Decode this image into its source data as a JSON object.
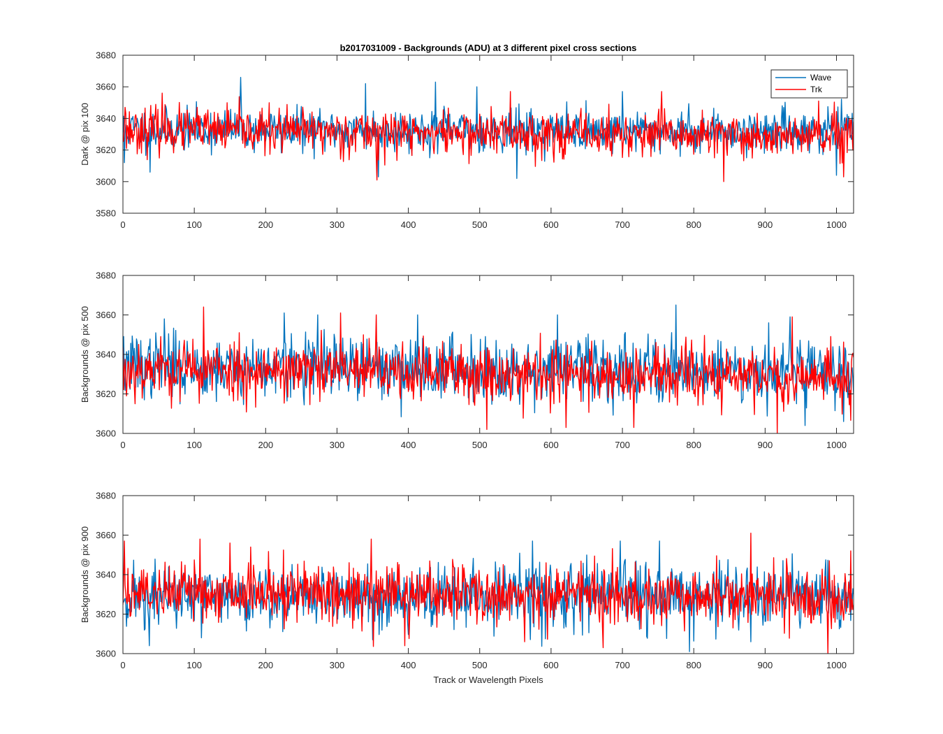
{
  "figure": {
    "title": "b2017031009 - Backgrounds (ADU) at 3 different pixel cross sections",
    "xlabel": "Track or Wavelength Pixels",
    "colors": {
      "wave": "#0072BD",
      "trk": "#FF0000",
      "axes": "#262626",
      "background": "#ffffff"
    }
  },
  "chart_data": [
    {
      "type": "line",
      "title": "b2017031009 - Backgrounds (ADU) at 3 different pixel cross sections",
      "xlabel": "",
      "ylabel": "Dark @ pix 100",
      "xlim": [
        0,
        1024
      ],
      "ylim": [
        3580,
        3680
      ],
      "xticks": [
        0,
        100,
        200,
        300,
        400,
        500,
        600,
        700,
        800,
        900,
        1000
      ],
      "yticks": [
        3580,
        3600,
        3620,
        3640,
        3660,
        3680
      ],
      "grid": false,
      "legend": {
        "placement": "top-right",
        "entries": [
          "Wave",
          "Trk"
        ]
      },
      "series": [
        {
          "name": "Wave",
          "color": "#0072BD",
          "mean": 3633,
          "spread": 6.5,
          "trend_end": -1,
          "seed": 11,
          "notable_points": [
            [
              2,
              3612
            ],
            [
              38,
              3606
            ],
            [
              165,
              3666
            ],
            [
              340,
              3662
            ],
            [
              358,
              3603
            ],
            [
              438,
              3663
            ],
            [
              496,
              3660
            ],
            [
              552,
              3602
            ],
            [
              700,
              3657
            ],
            [
              1000,
              3604
            ]
          ]
        },
        {
          "name": "Trk",
          "color": "#FF0000",
          "mean": 3633,
          "spread": 7,
          "trend_end": -5,
          "seed": 23,
          "notable_points": [
            [
              3,
              3647
            ],
            [
              55,
              3656
            ],
            [
              356,
              3601
            ],
            [
              543,
              3657
            ],
            [
              755,
              3657
            ],
            [
              842,
              3600
            ],
            [
              975,
              3651
            ],
            [
              1010,
              3603
            ]
          ]
        }
      ]
    },
    {
      "type": "line",
      "title": "",
      "xlabel": "",
      "ylabel": "Backgrounds @ pix 500",
      "xlim": [
        0,
        1024
      ],
      "ylim": [
        3600,
        3680
      ],
      "xticks": [
        0,
        100,
        200,
        300,
        400,
        500,
        600,
        700,
        800,
        900,
        1000
      ],
      "yticks": [
        3600,
        3620,
        3640,
        3660,
        3680
      ],
      "grid": false,
      "series": [
        {
          "name": "Wave",
          "color": "#0072BD",
          "mean": 3634,
          "spread": 8,
          "trend_end": -2,
          "seed": 37,
          "notable_points": [
            [
              58,
              3658
            ],
            [
              226,
              3661
            ],
            [
              273,
              3660
            ],
            [
              413,
              3660
            ],
            [
              609,
              3660
            ],
            [
              775,
              3665
            ],
            [
              905,
              3656
            ],
            [
              935,
              3659
            ],
            [
              956,
              3604
            ],
            [
              1010,
              3606
            ]
          ]
        },
        {
          "name": "Trk",
          "color": "#FF0000",
          "mean": 3633,
          "spread": 7.5,
          "trend_end": -5,
          "seed": 53,
          "notable_points": [
            [
              5,
              3619
            ],
            [
              113,
              3664
            ],
            [
              305,
              3661
            ],
            [
              355,
              3660
            ],
            [
              510,
              3602
            ],
            [
              621,
              3603
            ],
            [
              716,
              3603
            ],
            [
              917,
              3600
            ],
            [
              938,
              3659
            ]
          ]
        }
      ]
    },
    {
      "type": "line",
      "title": "",
      "xlabel": "Track or Wavelength Pixels",
      "ylabel": "Backgrounds @ pix 900",
      "xlim": [
        0,
        1024
      ],
      "ylim": [
        3600,
        3680
      ],
      "xticks": [
        0,
        100,
        200,
        300,
        400,
        500,
        600,
        700,
        800,
        900,
        1000
      ],
      "yticks": [
        3600,
        3620,
        3640,
        3660,
        3680
      ],
      "grid": false,
      "series": [
        {
          "name": "Wave",
          "color": "#0072BD",
          "mean": 3629,
          "spread": 8,
          "trend_end": 0,
          "seed": 71,
          "notable_points": [
            [
              37,
              3604
            ],
            [
              110,
              3608
            ],
            [
              350,
              3607
            ],
            [
              574,
              3657
            ],
            [
              697,
              3657
            ],
            [
              752,
              3657
            ],
            [
              794,
              3601
            ],
            [
              880,
              3606
            ]
          ]
        },
        {
          "name": "Trk",
          "color": "#FF0000",
          "mean": 3632,
          "spread": 7.5,
          "trend_end": -4,
          "seed": 89,
          "notable_points": [
            [
              2,
              3657
            ],
            [
              108,
              3658
            ],
            [
              150,
              3656
            ],
            [
              348,
              3658
            ],
            [
              395,
              3604
            ],
            [
              563,
              3606
            ],
            [
              673,
              3603
            ],
            [
              880,
              3661
            ],
            [
              988,
              3600
            ],
            [
              1020,
              3652
            ]
          ]
        }
      ]
    }
  ]
}
